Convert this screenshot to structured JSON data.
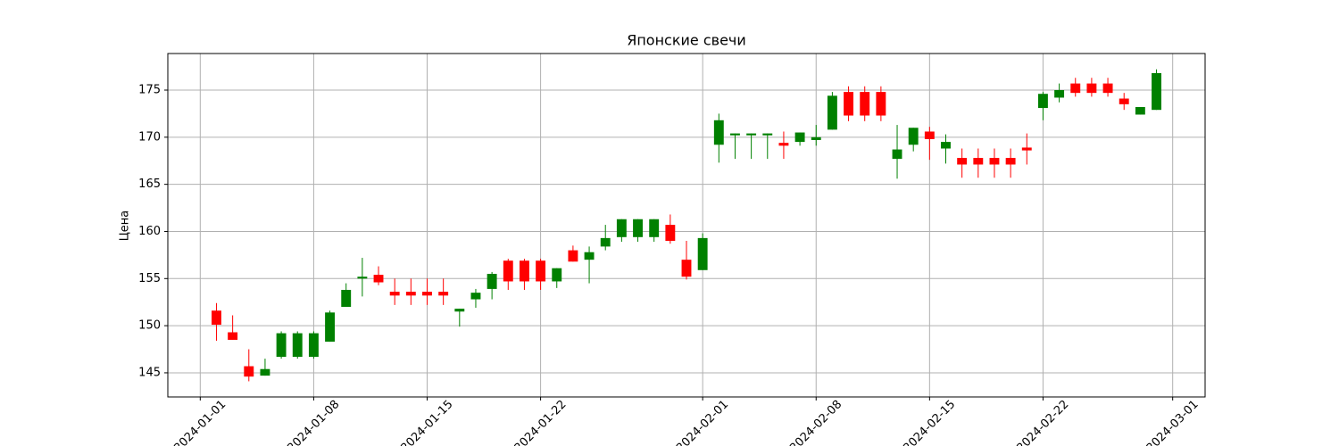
{
  "chart_data": {
    "type": "candlestick",
    "title": "Японские свечи",
    "ylabel": "Цена",
    "x": [
      "2024-01-02",
      "2024-01-03",
      "2024-01-04",
      "2024-01-05",
      "2024-01-06",
      "2024-01-07",
      "2024-01-08",
      "2024-01-09",
      "2024-01-10",
      "2024-01-11",
      "2024-01-12",
      "2024-01-13",
      "2024-01-14",
      "2024-01-15",
      "2024-01-16",
      "2024-01-17",
      "2024-01-18",
      "2024-01-19",
      "2024-01-20",
      "2024-01-21",
      "2024-01-22",
      "2024-01-23",
      "2024-01-24",
      "2024-01-25",
      "2024-01-26",
      "2024-01-27",
      "2024-01-28",
      "2024-01-29",
      "2024-01-30",
      "2024-01-31",
      "2024-02-01",
      "2024-02-02",
      "2024-02-03",
      "2024-02-04",
      "2024-02-05",
      "2024-02-06",
      "2024-02-07",
      "2024-02-08",
      "2024-02-09",
      "2024-02-10",
      "2024-02-11",
      "2024-02-12",
      "2024-02-13",
      "2024-02-14",
      "2024-02-15",
      "2024-02-16",
      "2024-02-17",
      "2024-02-18",
      "2024-02-19",
      "2024-02-20",
      "2024-02-21",
      "2024-02-22",
      "2024-02-23",
      "2024-02-24",
      "2024-02-25",
      "2024-02-26",
      "2024-02-27",
      "2024-02-28",
      "2024-02-29"
    ],
    "open": [
      151.6,
      149.3,
      145.7,
      144.7,
      146.7,
      146.7,
      146.7,
      148.3,
      152.0,
      155.0,
      155.4,
      153.6,
      153.6,
      153.6,
      153.6,
      151.5,
      152.8,
      153.9,
      156.9,
      156.9,
      156.9,
      154.7,
      158.0,
      157.0,
      158.4,
      159.4,
      159.4,
      159.4,
      160.7,
      157.0,
      155.9,
      169.2,
      170.2,
      170.2,
      170.2,
      169.4,
      169.5,
      169.7,
      170.8,
      174.8,
      174.8,
      174.8,
      167.7,
      169.2,
      170.6,
      168.8,
      167.8,
      167.8,
      167.8,
      167.8,
      168.9,
      173.1,
      174.2,
      175.7,
      175.7,
      175.7,
      174.1,
      172.4,
      172.9
    ],
    "high": [
      152.4,
      151.1,
      147.5,
      146.5,
      149.4,
      149.4,
      149.4,
      151.6,
      154.5,
      157.2,
      156.3,
      155.0,
      155.0,
      155.0,
      155.0,
      151.8,
      153.9,
      155.7,
      157.1,
      157.1,
      157.1,
      156.1,
      158.5,
      158.4,
      160.7,
      161.3,
      161.3,
      161.3,
      161.8,
      159.0,
      159.8,
      172.5,
      170.4,
      170.4,
      170.4,
      170.6,
      170.5,
      171.3,
      174.8,
      175.4,
      175.4,
      175.4,
      171.3,
      171.0,
      171.1,
      170.3,
      168.8,
      168.8,
      168.8,
      168.8,
      170.4,
      174.8,
      175.7,
      176.3,
      176.3,
      176.3,
      174.7,
      173.2,
      177.2
    ],
    "low": [
      148.4,
      148.5,
      144.1,
      144.7,
      146.5,
      146.5,
      146.5,
      148.3,
      152.0,
      153.1,
      154.3,
      152.2,
      152.2,
      152.2,
      152.2,
      149.9,
      151.9,
      152.8,
      153.8,
      153.8,
      153.8,
      154.0,
      156.8,
      154.5,
      158.0,
      158.9,
      158.9,
      158.9,
      158.7,
      154.9,
      155.9,
      167.3,
      167.7,
      167.7,
      167.7,
      167.7,
      169.1,
      169.1,
      170.8,
      171.7,
      171.7,
      171.7,
      165.6,
      168.5,
      167.6,
      167.2,
      165.7,
      165.7,
      165.7,
      165.7,
      167.1,
      171.8,
      173.7,
      174.3,
      174.3,
      174.3,
      172.9,
      172.4,
      172.9
    ],
    "close": [
      150.1,
      148.5,
      144.6,
      145.4,
      149.2,
      149.2,
      149.2,
      151.4,
      153.8,
      155.2,
      154.6,
      153.2,
      153.2,
      153.2,
      153.2,
      151.8,
      153.5,
      155.5,
      154.7,
      154.7,
      154.7,
      156.1,
      156.8,
      157.8,
      159.3,
      161.3,
      161.3,
      161.3,
      159.0,
      155.2,
      159.3,
      171.8,
      170.4,
      170.4,
      170.4,
      169.1,
      170.5,
      170.0,
      174.4,
      172.3,
      172.3,
      172.3,
      168.7,
      171.0,
      169.8,
      169.5,
      167.1,
      167.1,
      167.1,
      167.1,
      168.6,
      174.6,
      175.0,
      174.7,
      174.7,
      174.7,
      173.5,
      173.2,
      176.8
    ],
    "up_color": "green",
    "down_color": "red",
    "xlim": [
      "2023-12-30",
      "2024-03-03"
    ],
    "xticks": [
      "2024-01-01",
      "2024-01-08",
      "2024-01-15",
      "2024-01-22",
      "2024-02-01",
      "2024-02-08",
      "2024-02-15",
      "2024-02-22",
      "2024-03-01"
    ],
    "ylim": [
      142.44,
      178.88
    ],
    "yticks": [
      145,
      150,
      155,
      160,
      165,
      170,
      175
    ],
    "grid": true
  }
}
